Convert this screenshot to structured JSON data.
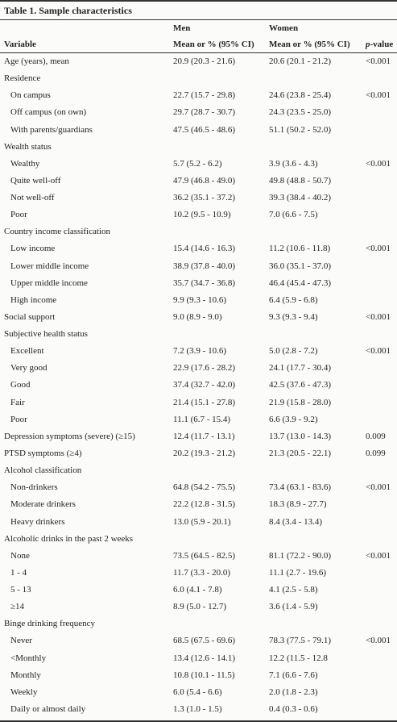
{
  "title": "Table 1. Sample characteristics",
  "columns": {
    "groups": [
      "Men",
      "Women"
    ],
    "labels": [
      "Variable",
      "Mean or % (95% CI)",
      "Mean or % (95% CI)",
      "p-value"
    ]
  },
  "sections": [
    {
      "label": "Age (years), mean",
      "men": "20.9 (20.3 - 21.6)",
      "women": "20.6 (20.1 - 21.2)",
      "p": "<0.001"
    },
    {
      "label": "Residence",
      "rows": [
        {
          "label": "On campus",
          "men": "22.7 (15.7 - 29.8)",
          "women": "24.6 (23.8 - 25.4)",
          "p": "<0.001"
        },
        {
          "label": "Off campus (on own)",
          "men": "29.7 (28.7 - 30.7)",
          "women": "24.3 (23.5 - 25.0)"
        },
        {
          "label": "With parents/guardians",
          "men": "47.5 (46.5 - 48.6)",
          "women": "51.1 (50.2 - 52.0)"
        }
      ]
    },
    {
      "label": "Wealth status",
      "rows": [
        {
          "label": "Wealthy",
          "men": "5.7 (5.2 - 6.2)",
          "women": "3.9 (3.6 - 4.3)",
          "p": "<0.001"
        },
        {
          "label": "Quite well-off",
          "men": "47.9 (46.8 - 49.0)",
          "women": "49.8 (48.8 - 50.7)"
        },
        {
          "label": "Not well-off",
          "men": "36.2 (35.1 - 37.2)",
          "women": "39.3 (38.4 - 40.2)"
        },
        {
          "label": "Poor",
          "men": "10.2 (9.5 - 10.9)",
          "women": "7.0 (6.6 - 7.5)"
        }
      ]
    },
    {
      "label": "Country income classification",
      "rows": [
        {
          "label": "Low income",
          "men": "15.4 (14.6 - 16.3)",
          "women": "11.2 (10.6 - 11.8)",
          "p": "<0.001"
        },
        {
          "label": "Lower middle income",
          "men": "38.9 (37.8 - 40.0)",
          "women": "36.0 (35.1 - 37.0)"
        },
        {
          "label": "Upper middle income",
          "men": "35.7 (34.7 - 36.8)",
          "women": "46.4 (45.4 - 47.3)"
        },
        {
          "label": "High income",
          "men": "9.9 (9.3 - 10.6)",
          "women": "6.4 (5.9 - 6.8)"
        }
      ]
    },
    {
      "label": "Social support",
      "men": "9.0 (8.9 - 9.0)",
      "women": "9.3 (9.3 - 9.4)",
      "p": "<0.001"
    },
    {
      "label": "Subjective health status",
      "rows": [
        {
          "label": "Excellent",
          "men": "7.2 (3.9 - 10.6)",
          "women": "5.0 (2.8 - 7.2)",
          "p": "<0.001"
        },
        {
          "label": "Very good",
          "men": "22.9 (17.6 - 28.2)",
          "women": "24.1 (17.7 - 30.4)"
        },
        {
          "label": "Good",
          "men": "37.4 (32.7 - 42.0)",
          "women": "42.5 (37.6 - 47.3)"
        },
        {
          "label": "Fair",
          "men": "21.4 (15.1 - 27.8)",
          "women": "21.9 (15.8 - 28.0)"
        },
        {
          "label": "Poor",
          "men": "11.1 (6.7 - 15.4)",
          "women": "6.6 (3.9 - 9.2)"
        }
      ]
    },
    {
      "label": "Depression symptoms (severe) (≥15)",
      "men": "12.4 (11.7 - 13.1)",
      "women": "13.7 (13.0 - 14.3)",
      "p": "0.009"
    },
    {
      "label": "PTSD symptoms (≥4)",
      "men": "20.2 (19.3 - 21.2)",
      "women": "21.3 (20.5 - 22.1)",
      "p": "0.099"
    },
    {
      "label": "Alcohol classification",
      "rows": [
        {
          "label": "Non-drinkers",
          "men": "64.8 (54.2 - 75.5)",
          "women": "73.4 (63.1 - 83.6)",
          "p": "<0.001"
        },
        {
          "label": "Moderate drinkers",
          "men": "22.2 (12.8 - 31.5)",
          "women": "18.3 (8.9 - 27.7)"
        },
        {
          "label": "Heavy drinkers",
          "men": "13.0 (5.9 - 20.1)",
          "women": "8.4 (3.4 - 13.4)"
        }
      ]
    },
    {
      "label": "Alcoholic drinks in the past 2 weeks",
      "rows": [
        {
          "label": "None",
          "men": "73.5 (64.5 - 82.5)",
          "women": "81.1 (72.2 - 90.0)",
          "p": "<0.001"
        },
        {
          "label": "1 - 4",
          "men": "11.7 (3.3 - 20.0)",
          "women": "11.1 (2.7 - 19.6)"
        },
        {
          "label": "5 - 13",
          "men": "6.0 (4.1 - 7.8)",
          "women": "4.1 (2.5 - 5.8)"
        },
        {
          "label": "≥14",
          "men": "8.9 (5.0 - 12.7)",
          "women": "3.6 (1.4 - 5.9)"
        }
      ]
    },
    {
      "label": "Binge drinking frequency",
      "rows": [
        {
          "label": "Never",
          "men": "68.5 (67.5 - 69.6)",
          "women": "78.3 (77.5 - 79.1)",
          "p": "<0.001"
        },
        {
          "label": "<Monthly",
          "men": "13.4 (12.6 - 14.1)",
          "women": "12.2 (11.5 - 12.8"
        },
        {
          "label": "Monthly",
          "men": "10.8 (10.1 - 11.5)",
          "women": "7.1 (6.6 - 7.6)"
        },
        {
          "label": "Weekly",
          "men": "6.0 (5.4 - 6.6)",
          "women": "2.0 (1.8 - 2.3)"
        },
        {
          "label": "Daily or almost daily",
          "men": "1.3 (1.0 - 1.5)",
          "women": "0.4 (0.3 - 0.6)"
        }
      ]
    }
  ]
}
